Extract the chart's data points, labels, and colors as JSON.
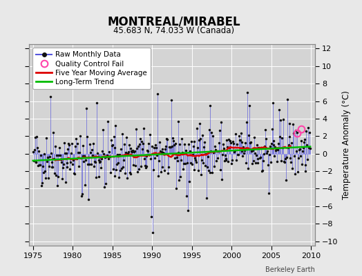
{
  "title": "MONTREAL/MIRABEL",
  "subtitle": "45.683 N, 74.033 W (Canada)",
  "ylabel": "Temperature Anomaly (°C)",
  "xlabel_note": "Berkeley Earth",
  "xlim": [
    1974.5,
    2010.5
  ],
  "ylim": [
    -10.5,
    12.5
  ],
  "yticks": [
    -10,
    -8,
    -6,
    -4,
    -2,
    0,
    2,
    4,
    6,
    8,
    10,
    12
  ],
  "xticks": [
    1975,
    1980,
    1985,
    1990,
    1995,
    2000,
    2005,
    2010
  ],
  "fig_bg_color": "#e8e8e8",
  "plot_bg_color": "#d4d4d4",
  "grid_color": "#ffffff",
  "raw_line_color": "#5555dd",
  "raw_marker_color": "#111111",
  "five_yr_color": "#dd0000",
  "trend_color": "#00bb00",
  "qc_fail_color": "#ff44aa",
  "seed": 42
}
